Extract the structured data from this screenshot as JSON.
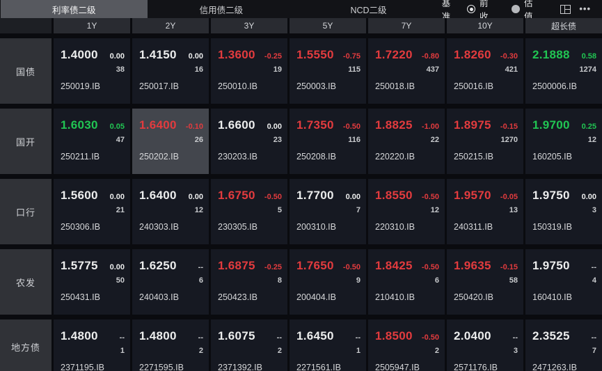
{
  "top_bar": {
    "tabs": [
      {
        "label": "利率债二级",
        "active": true
      },
      {
        "label": "信用债二级",
        "active": false
      },
      {
        "label": "NCD二级",
        "active": false
      }
    ],
    "benchmark": {
      "label": "基准",
      "options": [
        {
          "label": "前收",
          "selected": true
        },
        {
          "label": "估值",
          "selected": false
        }
      ]
    },
    "icons": {
      "layout": "layout-panels",
      "more": "•••"
    }
  },
  "colors": {
    "red_down": "#e23b3e",
    "green_up": "#21c553",
    "neutral": "#eceded",
    "active_tab_bg": "#57595f",
    "highlight_cell_bg": "#43464d"
  },
  "table": {
    "column_headers": [
      "1Y",
      "2Y",
      "3Y",
      "5Y",
      "7Y",
      "10Y",
      "超长债"
    ],
    "rows": [
      {
        "label": "国债",
        "cells": [
          {
            "yield": "1.4000",
            "change": "0.00",
            "count": "38",
            "code": "250019.IB",
            "color": "white"
          },
          {
            "yield": "1.4150",
            "change": "0.00",
            "count": "16",
            "code": "250017.IB",
            "color": "white"
          },
          {
            "yield": "1.3600",
            "change": "-0.25",
            "count": "19",
            "code": "250010.IB",
            "color": "red"
          },
          {
            "yield": "1.5550",
            "change": "-0.75",
            "count": "115",
            "code": "250003.IB",
            "color": "red"
          },
          {
            "yield": "1.7220",
            "change": "-0.80",
            "count": "437",
            "code": "250018.IB",
            "color": "red"
          },
          {
            "yield": "1.8260",
            "change": "-0.30",
            "count": "421",
            "code": "250016.IB",
            "color": "red"
          },
          {
            "yield": "2.1888",
            "change": "0.58",
            "count": "1274",
            "code": "2500006.IB",
            "color": "green"
          }
        ]
      },
      {
        "label": "国开",
        "cells": [
          {
            "yield": "1.6030",
            "change": "0.05",
            "count": "47",
            "code": "250211.IB",
            "color": "green"
          },
          {
            "yield": "1.6400",
            "change": "-0.10",
            "count": "26",
            "code": "250202.IB",
            "color": "red",
            "highlighted": true
          },
          {
            "yield": "1.6600",
            "change": "0.00",
            "count": "23",
            "code": "230203.IB",
            "color": "white"
          },
          {
            "yield": "1.7350",
            "change": "-0.50",
            "count": "116",
            "code": "250208.IB",
            "color": "red"
          },
          {
            "yield": "1.8825",
            "change": "-1.00",
            "count": "22",
            "code": "220220.IB",
            "color": "red"
          },
          {
            "yield": "1.8975",
            "change": "-0.15",
            "count": "1270",
            "code": "250215.IB",
            "color": "red"
          },
          {
            "yield": "1.9700",
            "change": "0.25",
            "count": "12",
            "code": "160205.IB",
            "color": "green"
          }
        ]
      },
      {
        "label": "口行",
        "cells": [
          {
            "yield": "1.5600",
            "change": "0.00",
            "count": "21",
            "code": "250306.IB",
            "color": "white"
          },
          {
            "yield": "1.6400",
            "change": "0.00",
            "count": "12",
            "code": "240303.IB",
            "color": "white"
          },
          {
            "yield": "1.6750",
            "change": "-0.50",
            "count": "5",
            "code": "230305.IB",
            "color": "red"
          },
          {
            "yield": "1.7700",
            "change": "0.00",
            "count": "7",
            "code": "200310.IB",
            "color": "white"
          },
          {
            "yield": "1.8550",
            "change": "-0.50",
            "count": "12",
            "code": "220310.IB",
            "color": "red"
          },
          {
            "yield": "1.9570",
            "change": "-0.05",
            "count": "13",
            "code": "240311.IB",
            "color": "red"
          },
          {
            "yield": "1.9750",
            "change": "0.00",
            "count": "3",
            "code": "150319.IB",
            "color": "white"
          }
        ]
      },
      {
        "label": "农发",
        "cells": [
          {
            "yield": "1.5775",
            "change": "0.00",
            "count": "50",
            "code": "250431.IB",
            "color": "white"
          },
          {
            "yield": "1.6250",
            "change": "--",
            "count": "6",
            "code": "240403.IB",
            "color": "white"
          },
          {
            "yield": "1.6875",
            "change": "-0.25",
            "count": "8",
            "code": "250423.IB",
            "color": "red"
          },
          {
            "yield": "1.7650",
            "change": "-0.50",
            "count": "9",
            "code": "200404.IB",
            "color": "red"
          },
          {
            "yield": "1.8425",
            "change": "-0.50",
            "count": "6",
            "code": "210410.IB",
            "color": "red"
          },
          {
            "yield": "1.9635",
            "change": "-0.15",
            "count": "58",
            "code": "250420.IB",
            "color": "red"
          },
          {
            "yield": "1.9750",
            "change": "--",
            "count": "4",
            "code": "160410.IB",
            "color": "white"
          }
        ]
      },
      {
        "label": "地方债",
        "cells": [
          {
            "yield": "1.4800",
            "change": "--",
            "count": "1",
            "code": "2371195.IB",
            "color": "white"
          },
          {
            "yield": "1.4800",
            "change": "--",
            "count": "2",
            "code": "2271595.IB",
            "color": "white"
          },
          {
            "yield": "1.6075",
            "change": "--",
            "count": "2",
            "code": "2371392.IB",
            "color": "white"
          },
          {
            "yield": "1.6450",
            "change": "--",
            "count": "1",
            "code": "2271561.IB",
            "color": "white"
          },
          {
            "yield": "1.8500",
            "change": "-0.50",
            "count": "2",
            "code": "2505947.IB",
            "color": "red"
          },
          {
            "yield": "2.0400",
            "change": "--",
            "count": "3",
            "code": "2571176.IB",
            "color": "white"
          },
          {
            "yield": "2.3525",
            "change": "--",
            "count": "7",
            "code": "2471263.IB",
            "color": "white"
          }
        ]
      }
    ]
  }
}
